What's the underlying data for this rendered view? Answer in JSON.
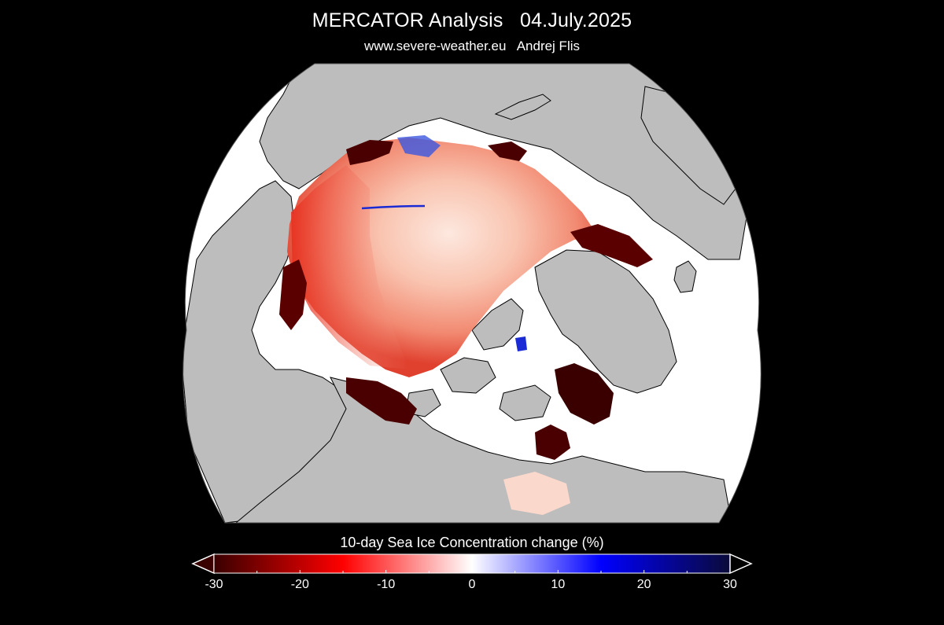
{
  "header": {
    "title": "MERCATOR Analysis   04.July.2025",
    "subtitle": "www.severe-weather.eu   Andrej Flis"
  },
  "map": {
    "projection": "polar-orthographic",
    "land_color": "#bdbdbd",
    "ice_free_ocean_color": "#ffffff",
    "background_color": "#000000"
  },
  "legend": {
    "title": "10-day Sea Ice Concentration change (%)",
    "min": -30,
    "max": 30,
    "tick_labels": [
      "-30",
      "-20",
      "-10",
      "0",
      "10",
      "20",
      "30"
    ],
    "tick_values": [
      -30,
      -20,
      -10,
      0,
      10,
      20,
      30
    ],
    "colors": {
      "min": "#3a0000",
      "mid_neg": "#ff0000",
      "zero": "#ffffff",
      "mid_pos": "#0000ff",
      "max": "#0a0a3a"
    }
  }
}
